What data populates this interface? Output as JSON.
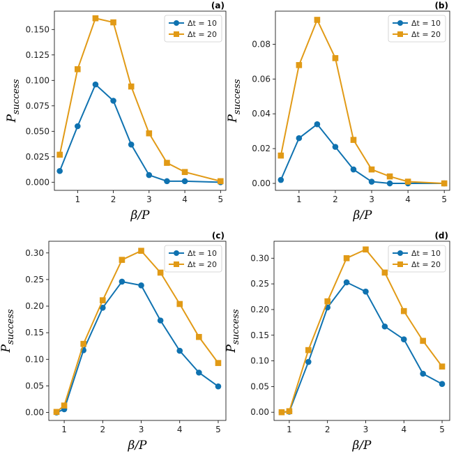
{
  "colors": {
    "series1": "#0f72b0",
    "series2": "#e19a16"
  },
  "chart_data": [
    {
      "type": "line",
      "panel_label": "(a)",
      "xlabel": "β/P",
      "ylabel_main": "P",
      "ylabel_sub": "success",
      "xlim": [
        0.35,
        5.15
      ],
      "ylim": [
        -0.008,
        0.168
      ],
      "xticks": [
        1,
        2,
        3,
        4,
        5
      ],
      "xtick_labels": [
        "1",
        "2",
        "3",
        "4",
        "5"
      ],
      "yticks": [
        0.0,
        0.025,
        0.05,
        0.075,
        0.1,
        0.125,
        0.15
      ],
      "ytick_labels": [
        "0.000",
        "0.025",
        "0.050",
        "0.075",
        "0.100",
        "0.125",
        "0.150"
      ],
      "legend_position": "top-right",
      "series": [
        {
          "name": "Δt = 10",
          "marker": "circle",
          "x": [
            0.5,
            1,
            1.5,
            2,
            2.5,
            3,
            3.5,
            4,
            5
          ],
          "y": [
            0.011,
            0.055,
            0.096,
            0.08,
            0.037,
            0.007,
            0.001,
            0.001,
            0.0
          ]
        },
        {
          "name": "Δt = 20",
          "marker": "square",
          "x": [
            0.5,
            1,
            1.5,
            2,
            2.5,
            3,
            3.5,
            4,
            5
          ],
          "y": [
            0.027,
            0.111,
            0.161,
            0.157,
            0.094,
            0.048,
            0.019,
            0.01,
            0.001
          ]
        }
      ]
    },
    {
      "type": "line",
      "panel_label": "(b)",
      "xlabel": "β/P",
      "ylabel_main": "P",
      "ylabel_sub": "success",
      "xlim": [
        0.35,
        5.15
      ],
      "ylim": [
        -0.004,
        0.099
      ],
      "xticks": [
        1,
        2,
        3,
        4,
        5
      ],
      "xtick_labels": [
        "1",
        "2",
        "3",
        "4",
        "5"
      ],
      "yticks": [
        0.0,
        0.02,
        0.04,
        0.06,
        0.08
      ],
      "ytick_labels": [
        "0.00",
        "0.02",
        "0.04",
        "0.06",
        "0.08"
      ],
      "legend_position": "top-right",
      "series": [
        {
          "name": "Δt = 10",
          "marker": "circle",
          "x": [
            0.5,
            1,
            1.5,
            2,
            2.5,
            3,
            3.5,
            4,
            5
          ],
          "y": [
            0.002,
            0.026,
            0.034,
            0.021,
            0.008,
            0.001,
            0.0,
            0.0,
            0.0
          ]
        },
        {
          "name": "Δt = 20",
          "marker": "square",
          "x": [
            0.5,
            1,
            1.5,
            2,
            2.5,
            3,
            3.5,
            4,
            5
          ],
          "y": [
            0.016,
            0.068,
            0.094,
            0.072,
            0.025,
            0.008,
            0.004,
            0.001,
            0.0
          ]
        }
      ]
    },
    {
      "type": "line",
      "panel_label": "(c)",
      "xlabel": "β/P",
      "ylabel_main": "P",
      "ylabel_sub": "success",
      "xlim": [
        0.6,
        5.2
      ],
      "ylim": [
        -0.015,
        0.322
      ],
      "xticks": [
        1,
        2,
        3,
        4,
        5
      ],
      "xtick_labels": [
        "1",
        "2",
        "3",
        "4",
        "5"
      ],
      "yticks": [
        0.0,
        0.05,
        0.1,
        0.15,
        0.2,
        0.25,
        0.3
      ],
      "ytick_labels": [
        "0.00",
        "0.05",
        "0.10",
        "0.15",
        "0.20",
        "0.25",
        "0.30"
      ],
      "legend_position": "top-right",
      "series": [
        {
          "name": "Δt = 10",
          "marker": "circle",
          "x": [
            0.8,
            1,
            1.5,
            2,
            2.5,
            3,
            3.5,
            4,
            4.5,
            5
          ],
          "y": [
            0.0,
            0.006,
            0.117,
            0.197,
            0.246,
            0.239,
            0.173,
            0.116,
            0.075,
            0.049
          ]
        },
        {
          "name": "Δt = 20",
          "marker": "square",
          "x": [
            0.8,
            1,
            1.5,
            2,
            2.5,
            3,
            3.5,
            4,
            4.5,
            5
          ],
          "y": [
            0.001,
            0.013,
            0.129,
            0.211,
            0.287,
            0.304,
            0.263,
            0.204,
            0.142,
            0.093
          ]
        }
      ]
    },
    {
      "type": "line",
      "panel_label": "(d)",
      "xlabel": "β/P",
      "ylabel_main": "P",
      "ylabel_sub": "success",
      "xlim": [
        0.6,
        5.2
      ],
      "ylim": [
        -0.016,
        0.333
      ],
      "xticks": [
        1,
        2,
        3,
        4,
        5
      ],
      "xtick_labels": [
        "1",
        "2",
        "3",
        "4",
        "5"
      ],
      "yticks": [
        0.0,
        0.05,
        0.1,
        0.15,
        0.2,
        0.25,
        0.3
      ],
      "ytick_labels": [
        "0.00",
        "0.05",
        "0.10",
        "0.15",
        "0.20",
        "0.25",
        "0.30"
      ],
      "legend_position": "top-right",
      "series": [
        {
          "name": "Δt = 10",
          "marker": "circle",
          "x": [
            0.8,
            1,
            1.5,
            2,
            2.5,
            3,
            3.5,
            4,
            4.5,
            5
          ],
          "y": [
            0.0,
            0.001,
            0.098,
            0.204,
            0.253,
            0.235,
            0.167,
            0.142,
            0.075,
            0.055
          ]
        },
        {
          "name": "Δt = 20",
          "marker": "square",
          "x": [
            0.8,
            1,
            1.5,
            2,
            2.5,
            3,
            3.5,
            4,
            4.5,
            5
          ],
          "y": [
            0.0,
            0.002,
            0.121,
            0.216,
            0.3,
            0.317,
            0.272,
            0.197,
            0.139,
            0.089
          ]
        }
      ]
    }
  ]
}
